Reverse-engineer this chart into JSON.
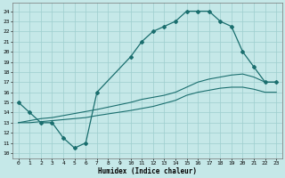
{
  "xlabel": "Humidex (Indice chaleur)",
  "background_color": "#c5e8e8",
  "grid_color": "#9ecece",
  "line_color": "#1a6e6e",
  "xlim": [
    -0.5,
    23.5
  ],
  "ylim": [
    9.5,
    24.8
  ],
  "xticks": [
    0,
    1,
    2,
    3,
    4,
    5,
    6,
    7,
    8,
    9,
    10,
    11,
    12,
    13,
    14,
    15,
    16,
    17,
    18,
    19,
    20,
    21,
    22,
    23
  ],
  "yticks": [
    10,
    11,
    12,
    13,
    14,
    15,
    16,
    17,
    18,
    19,
    20,
    21,
    22,
    23,
    24
  ],
  "curve1_x": [
    0,
    1,
    2,
    3,
    4,
    5,
    6,
    7,
    10,
    11,
    12,
    13,
    14,
    15,
    16,
    17,
    18,
    19,
    20,
    21,
    22,
    23
  ],
  "curve1_y": [
    15,
    14,
    13,
    13,
    11.5,
    10.5,
    11,
    16,
    19.5,
    21,
    22,
    22.5,
    23,
    24,
    24,
    24,
    23,
    22.5,
    20,
    18.5,
    17,
    17
  ],
  "curve2_x": [
    0,
    1,
    2,
    3,
    4,
    5,
    6,
    7,
    10,
    11,
    12,
    13,
    14,
    15,
    16,
    17,
    18,
    19,
    20,
    21,
    22,
    23
  ],
  "curve2_y": [
    13,
    13.2,
    13.4,
    13.5,
    13.7,
    13.9,
    14.1,
    14.3,
    15.0,
    15.3,
    15.5,
    15.7,
    16.0,
    16.5,
    17.0,
    17.3,
    17.5,
    17.7,
    17.8,
    17.5,
    17.0,
    17.0
  ],
  "curve3_x": [
    0,
    1,
    2,
    3,
    4,
    5,
    6,
    7,
    10,
    11,
    12,
    13,
    14,
    15,
    16,
    17,
    18,
    19,
    20,
    21,
    22,
    23
  ],
  "curve3_y": [
    13,
    13.0,
    13.1,
    13.2,
    13.3,
    13.4,
    13.5,
    13.7,
    14.2,
    14.4,
    14.6,
    14.9,
    15.2,
    15.7,
    16.0,
    16.2,
    16.4,
    16.5,
    16.5,
    16.3,
    16.0,
    16.0
  ]
}
